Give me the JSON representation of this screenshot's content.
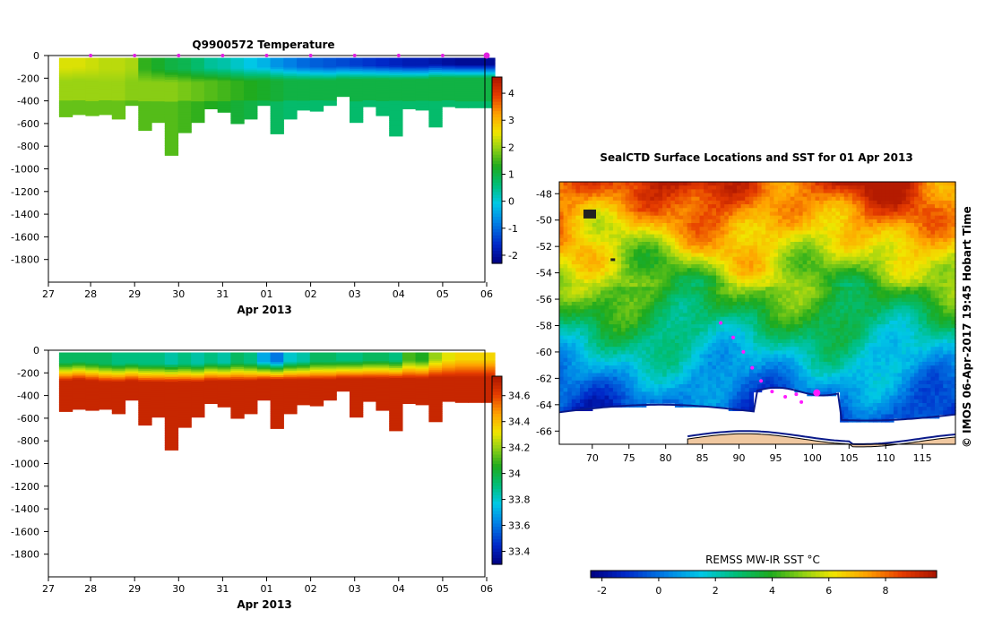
{
  "chart_data": [
    {
      "type": "heatmap",
      "title": "Q9900572  Temperature",
      "xlabel": "Apr 2013",
      "ylabel": "",
      "x_tick_labels": [
        "27",
        "28",
        "29",
        "30",
        "31",
        "01",
        "02",
        "03",
        "04",
        "05",
        "06"
      ],
      "y_tick_labels": [
        "0",
        "-200",
        "-400",
        "-600",
        "-800",
        "-1000",
        "-1200",
        "-1400",
        "-1600",
        "-1800"
      ],
      "ylim": [
        -2000,
        0
      ],
      "colorbar": {
        "min": -2.3,
        "max": 4.6,
        "tick_labels": [
          "-2",
          "-1",
          "0",
          "1",
          "2",
          "3",
          "4"
        ],
        "tick_values": [
          -2,
          -1,
          0,
          1,
          2,
          3,
          4
        ]
      },
      "profile_markers": [
        "28",
        "29",
        "30",
        "31",
        "01",
        "02",
        "03",
        "04",
        "05",
        "06"
      ],
      "profiles": [
        {
          "day": 0.25,
          "max_depth": -540,
          "mixed_layer": -110
        },
        {
          "day": 0.55,
          "max_depth": -520,
          "mixed_layer": -100
        },
        {
          "day": 0.85,
          "max_depth": -530,
          "mixed_layer": -110
        },
        {
          "day": 1.15,
          "max_depth": -520,
          "mixed_layer": -120
        },
        {
          "day": 1.45,
          "max_depth": -560,
          "mixed_layer": -120
        },
        {
          "day": 1.75,
          "max_depth": -440,
          "mixed_layer": -110
        },
        {
          "day": 2.05,
          "max_depth": -660,
          "mixed_layer": -120
        },
        {
          "day": 2.35,
          "max_depth": -590,
          "mixed_layer": -120
        },
        {
          "day": 2.65,
          "max_depth": -880,
          "mixed_layer": -120
        },
        {
          "day": 2.95,
          "max_depth": -680,
          "mixed_layer": -120
        },
        {
          "day": 3.25,
          "max_depth": -590,
          "mixed_layer": -120
        },
        {
          "day": 3.55,
          "max_depth": -470,
          "mixed_layer": -110
        },
        {
          "day": 3.85,
          "max_depth": -500,
          "mixed_layer": -110
        },
        {
          "day": 4.15,
          "max_depth": -600,
          "mixed_layer": -110
        },
        {
          "day": 4.45,
          "max_depth": -560,
          "mixed_layer": -110
        },
        {
          "day": 4.75,
          "max_depth": -440,
          "mixed_layer": -100
        },
        {
          "day": 5.05,
          "max_depth": -690,
          "mixed_layer": -100
        },
        {
          "day": 5.35,
          "max_depth": -560,
          "mixed_layer": -100
        },
        {
          "day": 5.65,
          "max_depth": -480,
          "mixed_layer": -100
        },
        {
          "day": 5.95,
          "max_depth": -490,
          "mixed_layer": -100
        },
        {
          "day": 6.25,
          "max_depth": -440,
          "mixed_layer": -100
        },
        {
          "day": 6.55,
          "max_depth": -360,
          "mixed_layer": -90
        },
        {
          "day": 6.85,
          "max_depth": -590,
          "mixed_layer": -90
        },
        {
          "day": 7.15,
          "max_depth": -450,
          "mixed_layer": -90
        },
        {
          "day": 7.45,
          "max_depth": -530,
          "mixed_layer": -90
        },
        {
          "day": 7.75,
          "max_depth": -710,
          "mixed_layer": -90
        },
        {
          "day": 8.05,
          "max_depth": -470,
          "mixed_layer": -90
        },
        {
          "day": 8.35,
          "max_depth": -480,
          "mixed_layer": -90
        },
        {
          "day": 8.65,
          "max_depth": -630,
          "mixed_layer": -80
        },
        {
          "day": 8.95,
          "max_depth": -450,
          "mixed_layer": -80
        },
        {
          "day": 9.25,
          "max_depth": -460,
          "mixed_layer": -80
        },
        {
          "day": 9.55,
          "max_depth": -460,
          "mixed_layer": -80
        },
        {
          "day": 9.85,
          "max_depth": -460,
          "mixed_layer": -80
        }
      ],
      "surface_temps": [
        2.4,
        2.4,
        2.3,
        2.2,
        2.2,
        2.1,
        1.4,
        1.2,
        1.0,
        0.9,
        0.7,
        0.4,
        0.3,
        0.1,
        -0.1,
        -0.3,
        -0.6,
        -0.8,
        -1.0,
        -1.1,
        -1.2,
        -1.3,
        -1.4,
        -1.5,
        -1.6,
        -1.7,
        -1.8,
        -1.8,
        -1.9,
        -2.0,
        -2.1,
        -2.1,
        -2.1
      ],
      "deep_temps": [
        2.0,
        2.0,
        2.0,
        2.0,
        2.0,
        1.9,
        1.9,
        1.9,
        1.9,
        1.8,
        1.7,
        1.6,
        1.5,
        1.4,
        1.3,
        1.2,
        1.1,
        1.0,
        1.0,
        1.0,
        1.0,
        1.0,
        1.0,
        1.0,
        1.0,
        1.0,
        1.0,
        1.0,
        1.0,
        1.0,
        1.0,
        1.0,
        1.0
      ]
    },
    {
      "type": "heatmap",
      "title": "",
      "xlabel": "Apr 2013",
      "ylabel": "",
      "x_tick_labels": [
        "27",
        "28",
        "29",
        "30",
        "31",
        "01",
        "02",
        "03",
        "04",
        "05",
        "06"
      ],
      "y_tick_labels": [
        "0",
        "-200",
        "-400",
        "-600",
        "-800",
        "-1000",
        "-1200",
        "-1400",
        "-1600",
        "-1800"
      ],
      "ylim": [
        -2000,
        0
      ],
      "colorbar": {
        "min": 33.3,
        "max": 34.75,
        "tick_labels": [
          "33.4",
          "33.6",
          "33.8",
          "34",
          "34.2",
          "34.4",
          "34.6"
        ],
        "tick_values": [
          33.4,
          33.6,
          33.8,
          34.0,
          34.2,
          34.4,
          34.6
        ]
      },
      "surface_salinity": [
        33.95,
        33.95,
        33.95,
        33.95,
        33.9,
        33.9,
        33.9,
        33.9,
        33.85,
        33.9,
        33.85,
        33.9,
        33.85,
        33.95,
        33.9,
        33.7,
        33.6,
        33.8,
        33.85,
        33.95,
        33.95,
        33.9,
        33.9,
        33.95,
        33.95,
        33.9,
        34.1,
        34.05,
        34.2,
        34.3,
        34.35,
        34.35,
        34.35
      ],
      "deep_salinity": 34.68
    },
    {
      "type": "heatmap",
      "title": "SealCTD Surface Locations and SST for 01 Apr 2013",
      "xlabel": "",
      "ylabel": "",
      "side_label": "©  IMOS 06-Apr-2017 19:45 Hobart Time",
      "x_tick_labels": [
        "70",
        "75",
        "80",
        "85",
        "90",
        "95",
        "100",
        "105",
        "110",
        "115"
      ],
      "x_tick_values": [
        70,
        75,
        80,
        85,
        90,
        95,
        100,
        105,
        110,
        115
      ],
      "y_tick_labels": [
        "-48",
        "-50",
        "-52",
        "-54",
        "-56",
        "-58",
        "-60",
        "-62",
        "-64",
        "-66"
      ],
      "y_tick_values": [
        -48,
        -50,
        -52,
        -54,
        -56,
        -58,
        -60,
        -62,
        -64,
        -66
      ],
      "xlim": [
        65.5,
        119.5
      ],
      "ylim": [
        -67,
        -47.1
      ],
      "colorbar": {
        "title": "REMSS MW-IR SST °C",
        "min": -2.4,
        "max": 9.8,
        "tick_labels": [
          "-2",
          "0",
          "2",
          "4",
          "6",
          "8"
        ],
        "tick_values": [
          -2,
          0,
          2,
          4,
          6,
          8
        ]
      },
      "seal_locations": [
        {
          "lon": 87.5,
          "lat": -57.8
        },
        {
          "lon": 89.2,
          "lat": -58.9
        },
        {
          "lon": 90.6,
          "lat": -60.0
        },
        {
          "lon": 91.8,
          "lat": -61.2
        },
        {
          "lon": 93.0,
          "lat": -62.2
        },
        {
          "lon": 94.5,
          "lat": -63.0
        },
        {
          "lon": 96.3,
          "lat": -63.4
        },
        {
          "lon": 97.8,
          "lat": -63.2
        },
        {
          "lon": 98.5,
          "lat": -63.8
        },
        {
          "lon": 100.6,
          "lat": -63.1,
          "latest": true
        }
      ]
    }
  ]
}
